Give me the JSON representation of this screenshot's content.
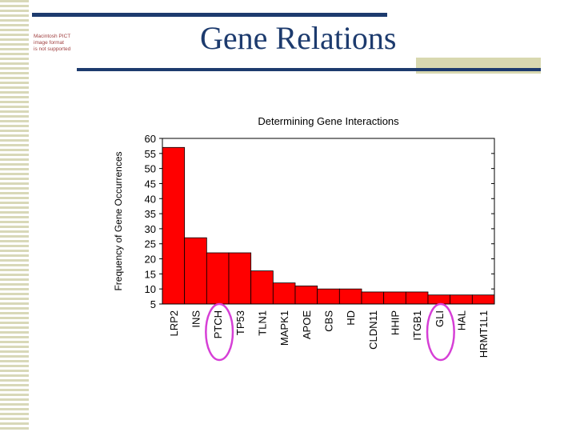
{
  "slide": {
    "title": "Gene Relations",
    "placeholder_note": [
      "Macintosh PICT",
      "image format",
      "is not supported"
    ]
  },
  "colors": {
    "bar": "#ff0000",
    "title": "#1d3b6e",
    "annotation_circle": "#d63fd6"
  },
  "chart_data": {
    "type": "bar",
    "title": "Determining Gene Interactions",
    "xlabel": "",
    "ylabel": "Frequency of Gene Occurrences",
    "categories": [
      "LRP2",
      "INS",
      "PTCH",
      "TP53",
      "TLN1",
      "MAPK1",
      "APOE",
      "CBS",
      "HD",
      "CLDN11",
      "HHIP",
      "ITGB1",
      "GLI",
      "HAL",
      "HRMT1L1"
    ],
    "values": [
      57,
      27,
      22,
      22,
      16,
      12,
      11,
      10,
      10,
      9,
      9,
      9,
      8,
      8,
      8
    ],
    "ylim": [
      5,
      60
    ],
    "yticks": [
      5,
      10,
      15,
      20,
      25,
      30,
      35,
      40,
      45,
      50,
      55,
      60
    ],
    "grid": false,
    "legend": "none",
    "highlighted": [
      "PTCH",
      "GLI"
    ]
  }
}
